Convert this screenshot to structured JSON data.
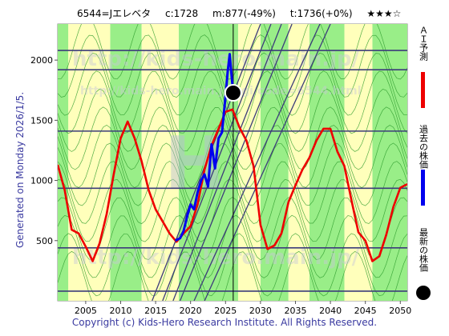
{
  "header": {
    "ticker": "6544=Jエレベタ",
    "current": "c:1728",
    "min": "m:877(-49%)",
    "target": "t:1736(+0%)",
    "rating": "★★★☆"
  },
  "generated": "Generated on Monday 2026/1/5.",
  "copyright": "Copyright (c) Kids-Hero Research Institute. All Rights Reserved.",
  "watermark": {
    "url1": "http://kids-hero.main.jp/",
    "url2": "http://kids-hero.main.jp/cgi/code=6544.html"
  },
  "legend": {
    "ai": "ＡＩ予測",
    "past": "過去の株価",
    "latest": "最新の株価"
  },
  "colors": {
    "ai": "#ee0000",
    "past": "#0000ee",
    "latest": "#000000",
    "band_green": "#99ee88",
    "band_yellow": "#ffffbb",
    "grid": "#3c3c7a"
  },
  "chart_data": {
    "type": "line",
    "xlim": [
      2001,
      2051
    ],
    "ylim": [
      0,
      2300
    ],
    "xticks": [
      "2005",
      "2010",
      "2015",
      "2020",
      "2025",
      "2030",
      "2035",
      "2040",
      "2045",
      "2050"
    ],
    "yticks": [
      "500",
      "1000",
      "1500",
      "2000"
    ],
    "hlines": [
      80,
      440,
      935,
      1410,
      1920,
      2080
    ],
    "latest_point": {
      "x": 2026.1,
      "y": 1728
    },
    "series": [
      {
        "name": "AI予測",
        "x": [
          2001,
          2002,
          2003,
          2004,
          2005,
          2006,
          2007,
          2008,
          2009,
          2010,
          2011,
          2012,
          2013,
          2014,
          2015,
          2016,
          2017,
          2018,
          2019,
          2020,
          2021,
          2022,
          2023,
          2024,
          2025,
          2026,
          2027,
          2028,
          2029,
          2030,
          2031,
          2032,
          2033,
          2034,
          2035,
          2036,
          2037,
          2038,
          2039,
          2040,
          2041,
          2042,
          2043,
          2044,
          2045,
          2046,
          2047,
          2048,
          2049,
          2050,
          2051
        ],
        "values": [
          1130,
          920,
          590,
          560,
          450,
          330,
          480,
          720,
          1050,
          1350,
          1490,
          1350,
          1160,
          920,
          760,
          660,
          560,
          490,
          560,
          620,
          800,
          1090,
          1290,
          1430,
          1570,
          1590,
          1440,
          1330,
          1120,
          630,
          430,
          460,
          560,
          820,
          960,
          1090,
          1190,
          1330,
          1430,
          1430,
          1240,
          1120,
          840,
          570,
          500,
          330,
          370,
          550,
          780,
          940,
          970
        ]
      },
      {
        "name": "過去の株価",
        "x": [
          2017.8,
          2018.5,
          2019.0,
          2019.5,
          2020.0,
          2020.5,
          2021.0,
          2021.5,
          2022.0,
          2022.5,
          2023.0,
          2023.5,
          2024.0,
          2024.5,
          2025.0,
          2025.3,
          2025.6,
          2025.9,
          2026.1
        ],
        "values": [
          500,
          520,
          580,
          700,
          800,
          760,
          900,
          1000,
          1050,
          950,
          1300,
          1100,
          1350,
          1400,
          1700,
          1900,
          2050,
          1850,
          1728
        ]
      }
    ]
  }
}
